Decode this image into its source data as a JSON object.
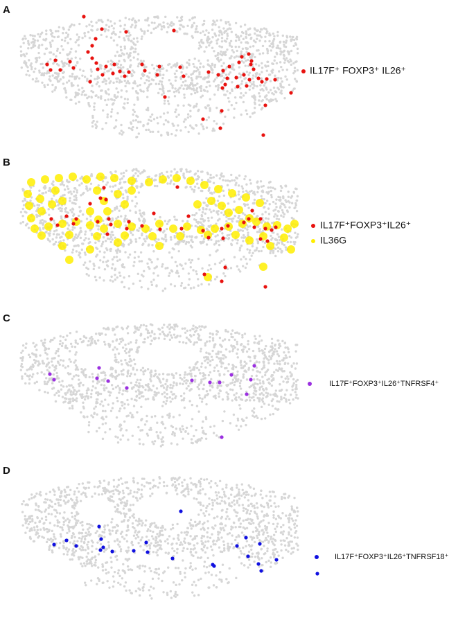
{
  "chart_data": [
    {
      "type": "scatter",
      "title": "A",
      "xlim": [
        0,
        440
      ],
      "ylim": [
        200,
        0
      ],
      "series": [
        {
          "name": "IL17F⁺ FOXP3⁺ IL26⁺",
          "color": "#e8120f",
          "x": [
            91,
            117,
            152,
            221,
            108,
            103,
            97,
            50,
            38,
            71,
            43,
            57,
            76,
            103,
            109,
            111,
            123,
            135,
            133,
            118,
            143,
            150,
            156,
            175,
            179,
            197,
            200,
            230,
            235,
            271,
            285,
            292,
            298,
            301,
            319,
            329,
            333,
            336,
            322,
            311,
            330,
            343,
            348,
            355,
            367,
            100,
            295,
            291,
            208,
            390,
            353,
            290,
            263,
            288,
            350,
            332,
            315,
            326,
            313
          ],
          "y": [
            9,
            27,
            31,
            29,
            41,
            51,
            60,
            72,
            78,
            74,
            86,
            86,
            83,
            69,
            76,
            85,
            81,
            78,
            91,
            93,
            88,
            95,
            89,
            78,
            87,
            93,
            81,
            82,
            95,
            89,
            93,
            87,
            98,
            81,
            67,
            63,
            73,
            85,
            93,
            97,
            100,
            98,
            103,
            99,
            100,
            103,
            107,
            112,
            125,
            119,
            137,
            145,
            157,
            170,
            180,
            78,
            75,
            109,
            110
          ]
        }
      ]
    },
    {
      "type": "scatter",
      "title": "B",
      "xlim": [
        0,
        440
      ],
      "ylim": [
        200,
        0
      ],
      "series": [
        {
          "name": "IL36G",
          "color": "#ffee00",
          "x": [
            15,
            35,
            55,
            75,
            95,
            115,
            135,
            160,
            185,
            205,
            225,
            245,
            265,
            285,
            305,
            325,
            345,
            10,
            12,
            15,
            28,
            30,
            45,
            60,
            50,
            110,
            120,
            125,
            112,
            100,
            140,
            150,
            160,
            255,
            275,
            290,
            300,
            315,
            330,
            20,
            40,
            60,
            80,
            100,
            120,
            140,
            160,
            180,
            200,
            220,
            240,
            260,
            280,
            300,
            320,
            340,
            355,
            370,
            385,
            395,
            30,
            70,
            110,
            150,
            190,
            230,
            270,
            310,
            350,
            380,
            60,
            100,
            140,
            200,
            330,
            360,
            390,
            70,
            270,
            350
          ],
          "y": [
            28,
            24,
            22,
            20,
            24,
            20,
            22,
            26,
            28,
            24,
            22,
            26,
            32,
            38,
            44,
            50,
            58,
            45,
            62,
            80,
            52,
            70,
            60,
            55,
            40,
            40,
            55,
            70,
            82,
            70,
            45,
            60,
            40,
            60,
            55,
            62,
            72,
            68,
            80,
            95,
            92,
            88,
            85,
            90,
            95,
            88,
            92,
            95,
            88,
            95,
            92,
            97,
            95,
            92,
            88,
            85,
            92,
            90,
            95,
            88,
            105,
            104,
            106,
            105,
            106,
            106,
            104,
            104,
            106,
            108,
            120,
            125,
            115,
            120,
            112,
            120,
            125,
            140,
            165,
            150
          ]
        },
        {
          "name": "IL17F⁺FOXP3⁺IL26⁺",
          "color": "#e8120f",
          "x": [
            120,
            115,
            123,
            226,
            100,
            44,
            53,
            66,
            76,
            80,
            111,
            127,
            130,
            153,
            156,
            175,
            201,
            232,
            263,
            290,
            299,
            292,
            322,
            329,
            334,
            337,
            346,
            353,
            362,
            368,
            346,
            356,
            125,
            271,
            295,
            290,
            353,
            242,
            265,
            192
          ],
          "y": [
            36,
            51,
            53,
            35,
            59,
            81,
            90,
            77,
            88,
            81,
            85,
            81,
            89,
            95,
            85,
            91,
            96,
            95,
            98,
            95,
            91,
            109,
            86,
            81,
            69,
            93,
            81,
            95,
            97,
            93,
            110,
            113,
            103,
            108,
            151,
            171,
            179,
            77,
            161,
            73
          ]
        }
      ]
    },
    {
      "type": "scatter",
      "title": "C",
      "xlim": [
        0,
        440
      ],
      "ylim": [
        200,
        0
      ],
      "series": [
        {
          "name": "IL17F⁺FOXP3⁺IL26⁺TNFRSF4⁺",
          "color": "#9b30e0",
          "x": [
            42,
            48,
            113,
            110,
            126,
            153,
            247,
            273,
            287,
            304,
            332,
            337,
            326,
            290
          ],
          "y": [
            80,
            88,
            71,
            86,
            90,
            100,
            89,
            92,
            92,
            81,
            88,
            68,
            109,
            171
          ]
        }
      ]
    },
    {
      "type": "scatter",
      "title": "D",
      "xlim": [
        0,
        440
      ],
      "ylim": [
        200,
        0
      ],
      "series": [
        {
          "name": "IL17F⁺FOXP3⁺IL26⁺TNFRSF18⁺",
          "color": "#1010e0",
          "x": [
            113,
            231,
            48,
            66,
            80,
            116,
            119,
            115,
            132,
            163,
            181,
            183,
            219,
            312,
            325,
            345,
            328,
            343,
            277,
            279,
            369,
            428,
            347
          ],
          "y": [
            80,
            58,
            106,
            100,
            108,
            98,
            110,
            114,
            116,
            115,
            103,
            117,
            126,
            108,
            96,
            105,
            123,
            134,
            135,
            137,
            128,
            148,
            144
          ]
        }
      ]
    }
  ]
}
